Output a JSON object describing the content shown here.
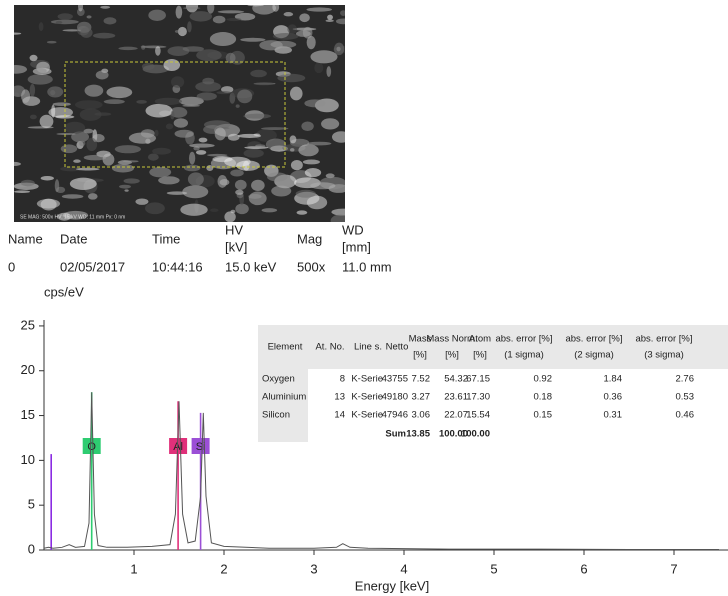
{
  "image": {
    "caption": "SE  MAG: 500x  HV: 15 kV  WD: 11 mm  Px: 0 nm"
  },
  "metadata": {
    "headers": [
      [
        "Name"
      ],
      [
        "Date"
      ],
      [
        "Time"
      ],
      [
        "HV",
        "[kV]"
      ],
      [
        "Mag"
      ],
      [
        "WD",
        "[mm]"
      ]
    ],
    "row": [
      "0",
      "02/05/2017",
      "10:44:16",
      "15.0 keV",
      "500x",
      "11.0 mm"
    ]
  },
  "chart_data": {
    "type": "line",
    "y_label": "cps/eV",
    "x_label": "Energy [keV]",
    "xlim": [
      0,
      7.6
    ],
    "ylim": [
      0,
      27
    ],
    "xticks": [
      1,
      2,
      3,
      4,
      5,
      6,
      7
    ],
    "yticks": [
      0,
      5,
      10,
      15,
      20,
      25
    ],
    "series": [
      {
        "color": "#555555",
        "x": [
          0.0,
          0.05,
          0.1,
          0.2,
          0.28,
          0.35,
          0.45,
          0.5,
          0.53,
          0.56,
          0.6,
          0.7,
          0.9,
          1.2,
          1.4,
          1.46,
          1.5,
          1.54,
          1.6,
          1.68,
          1.74,
          1.77,
          1.8,
          1.86,
          2.0,
          2.5,
          3.0,
          3.25,
          3.32,
          3.4,
          3.6,
          4.5,
          5.5,
          6.5,
          7.5
        ],
        "values": [
          0.2,
          0.3,
          0.2,
          0.3,
          0.6,
          0.3,
          0.4,
          3,
          17.6,
          4,
          0.5,
          0.3,
          0.3,
          0.4,
          0.6,
          4,
          16.6,
          4,
          0.8,
          1.0,
          6,
          15.3,
          6,
          0.8,
          0.4,
          0.2,
          0.2,
          0.3,
          0.7,
          0.3,
          0.2,
          0.1,
          0.1,
          0.05,
          0.05
        ]
      }
    ],
    "markers": [
      {
        "energy": 0.08,
        "height": 10.7,
        "color": "#8a2be2"
      },
      {
        "label": "O",
        "energy": 0.53,
        "height": 17.6,
        "color": "#2ecc71"
      },
      {
        "label": "Al",
        "energy": 1.49,
        "height": 16.6,
        "color": "#e0307a"
      },
      {
        "label": "Si",
        "energy": 1.74,
        "height": 15.3,
        "color": "#9b4fd6"
      }
    ]
  },
  "results_table": {
    "headers": [
      [
        "Element"
      ],
      [
        "At. No."
      ],
      [
        "Line s."
      ],
      [
        "Netto"
      ],
      [
        "Mass",
        "[%]"
      ],
      [
        "Mass Norm.",
        "[%]"
      ],
      [
        "Atom",
        "[%]"
      ],
      [
        "abs. error [%]",
        "(1 sigma)"
      ],
      [
        "abs. error [%]",
        "(2 sigma)"
      ],
      [
        "abs. error [%]",
        "(3 sigma)"
      ]
    ],
    "rows": [
      [
        "Oxygen",
        "8",
        "K-Serie",
        "43755",
        "7.52",
        "54.32",
        "67.15",
        "0.92",
        "1.84",
        "2.76"
      ],
      [
        "Aluminium",
        "13",
        "K-Serie",
        "49180",
        "3.27",
        "23.61",
        "17.30",
        "0.18",
        "0.36",
        "0.53"
      ],
      [
        "Silicon",
        "14",
        "K-Serie",
        "47946",
        "3.06",
        "22.07",
        "15.54",
        "0.15",
        "0.31",
        "0.46"
      ]
    ],
    "sum": {
      "label": "Sum",
      "mass": "13.85",
      "mass_norm": "100.00",
      "atom": "100.00"
    }
  }
}
